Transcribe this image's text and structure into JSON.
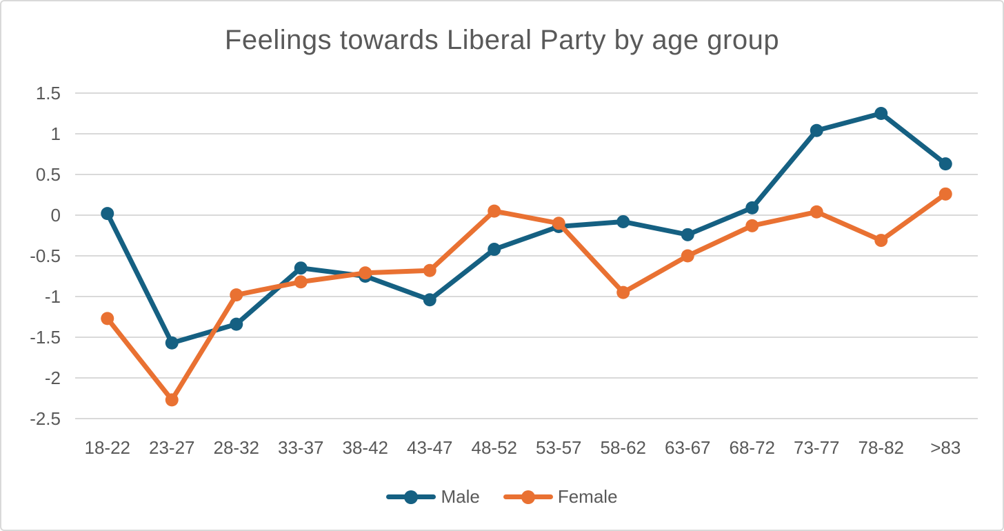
{
  "chart_data": {
    "type": "line",
    "title": "Feelings towards Liberal Party by age group",
    "xlabel": "",
    "ylabel": "",
    "categories": [
      "18-22",
      "23-27",
      "28-32",
      "33-37",
      "38-42",
      "43-47",
      "48-52",
      "53-57",
      "58-62",
      "63-67",
      "68-72",
      "73-77",
      "78-82",
      ">83"
    ],
    "series": [
      {
        "name": "Male",
        "color": "#156082",
        "values": [
          0.02,
          -1.57,
          -1.34,
          -0.65,
          -0.75,
          -1.04,
          -0.42,
          -0.14,
          -0.08,
          -0.24,
          0.09,
          1.04,
          1.25,
          0.63
        ]
      },
      {
        "name": "Female",
        "color": "#E97132",
        "values": [
          -1.27,
          -2.27,
          -0.98,
          -0.82,
          -0.71,
          -0.68,
          0.05,
          -0.1,
          -0.95,
          -0.5,
          -0.13,
          0.04,
          -0.31,
          0.26
        ]
      }
    ],
    "y_ticks": [
      1.5,
      1,
      0.5,
      0,
      -0.5,
      -1,
      -1.5,
      -2,
      -2.5
    ],
    "ylim": [
      -2.5,
      1.5
    ],
    "grid": true,
    "legend_position": "bottom"
  },
  "style": {
    "gridline_color": "#D9D9D9",
    "axis_text_color": "#595959",
    "title_color": "#595959",
    "background": "#FFFFFF",
    "border_color": "#D9D9D9"
  }
}
